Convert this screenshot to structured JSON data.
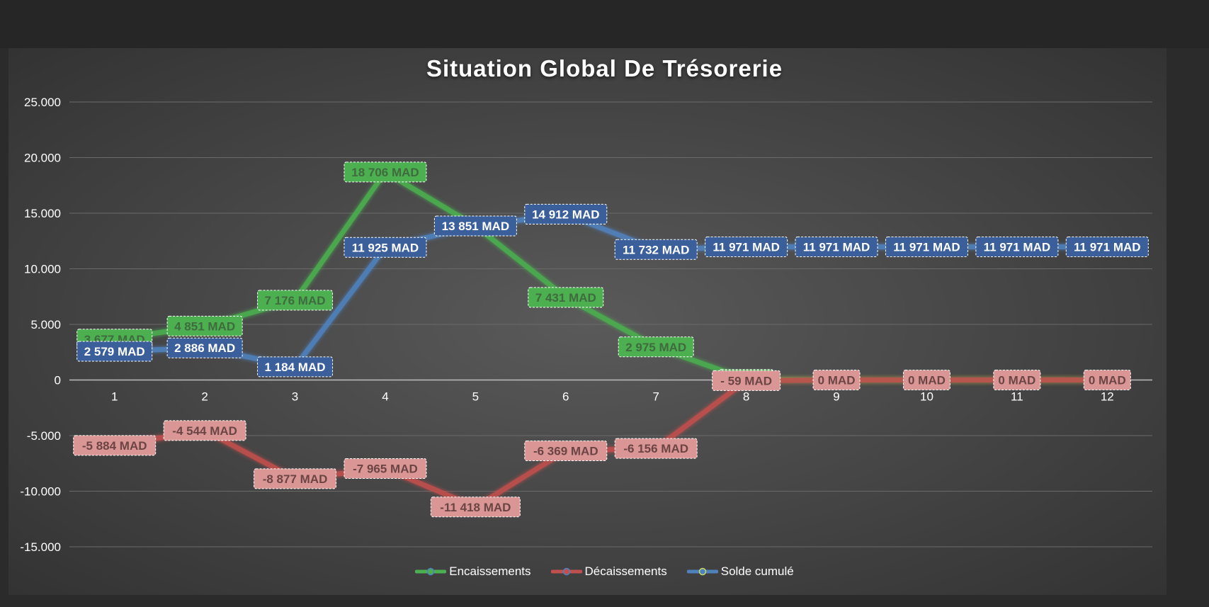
{
  "chart_data": {
    "type": "line",
    "title": "Situation Global De Trésorerie",
    "xlabel": "",
    "ylabel": "",
    "categories": [
      "1",
      "2",
      "3",
      "4",
      "5",
      "6",
      "7",
      "8",
      "9",
      "10",
      "11",
      "12"
    ],
    "y_ticks": [
      25000,
      20000,
      15000,
      10000,
      5000,
      0,
      -5000,
      -10000,
      -15000
    ],
    "y_tick_labels": [
      "25.000",
      "20.000",
      "15.000",
      "10.000",
      "5.000",
      "0",
      "-5.000",
      "-10.000",
      "-15.000"
    ],
    "ylim": [
      -15000,
      25000
    ],
    "grid": true,
    "legend": "bottom",
    "series": [
      {
        "name": "Encaissements",
        "color": "#4caf50",
        "label_bg": "#4caf50",
        "label_color": "#3f6b3f",
        "values": [
          3677,
          4851,
          7176,
          18706,
          13851,
          7431,
          2975,
          59,
          0,
          0,
          0,
          0
        ],
        "labels": [
          "3 677 MAD",
          "4 851 MAD",
          "7 176 MAD",
          "18 706 MAD",
          "13 851 MAD",
          "7 431 MAD",
          "2 975 MAD",
          "59 MAD",
          "0 MAD",
          "0 MAD",
          "0 MAD",
          "0 MAD"
        ],
        "show_labels": [
          true,
          true,
          true,
          true,
          false,
          true,
          true,
          true,
          false,
          false,
          false,
          false
        ]
      },
      {
        "name": "Décaissements",
        "color": "#c0504d",
        "label_bg": "#d99694",
        "label_color": "#6b4544",
        "values": [
          -5884,
          -4544,
          -8877,
          -7965,
          -11418,
          -6369,
          -6156,
          -59,
          0,
          0,
          0,
          0
        ],
        "labels": [
          "-5 884 MAD",
          "-4 544 MAD",
          "-8 877 MAD",
          "-7 965 MAD",
          "-11 418 MAD",
          "-6 369 MAD",
          "-6 156 MAD",
          "- 59 MAD",
          "0 MAD",
          "0 MAD",
          "0 MAD",
          "0 MAD"
        ],
        "show_labels": [
          true,
          true,
          true,
          true,
          true,
          true,
          true,
          true,
          true,
          true,
          true,
          true
        ]
      },
      {
        "name": "Solde cumulé",
        "color": "#4f81bd",
        "label_bg": "#3a5f9a",
        "label_color": "#ffffff",
        "values": [
          2579,
          2886,
          1184,
          11925,
          13851,
          14912,
          11732,
          11971,
          11971,
          11971,
          11971,
          11971
        ],
        "labels": [
          "2 579 MAD",
          "2 886 MAD",
          "1 184 MAD",
          "11 925 MAD",
          "13 851 MAD",
          "14 912 MAD",
          "11 732 MAD",
          "11 971 MAD",
          "11 971 MAD",
          "11 971 MAD",
          "11 971 MAD",
          "11 971 MAD"
        ],
        "show_labels": [
          true,
          true,
          true,
          true,
          true,
          true,
          true,
          true,
          true,
          true,
          true,
          true
        ]
      }
    ]
  }
}
